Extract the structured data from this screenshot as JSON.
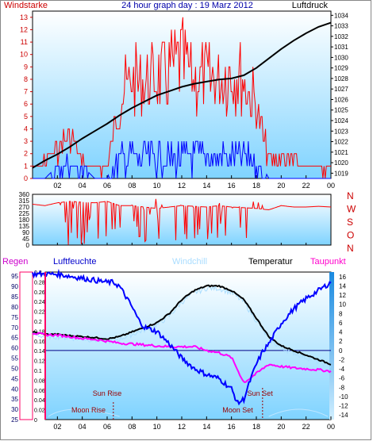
{
  "chart_data": [
    {
      "type": "bar",
      "panel": "wind-pressure",
      "title": "24 hour graph day : 19 Marz 2012",
      "left_label": "Windstarke",
      "right_label": "Luftdruck",
      "x_ticks": [
        "02",
        "04",
        "06",
        "08",
        "10",
        "12",
        "14",
        "16",
        "18",
        "20",
        "22",
        "00"
      ],
      "y_left_ticks": [
        0,
        1,
        2,
        3,
        4,
        5,
        6,
        7,
        8,
        9,
        10,
        11,
        12,
        13
      ],
      "y_left_lim": [
        0,
        13.5
      ],
      "y_right_ticks": [
        1019,
        1020,
        1021,
        1022,
        1023,
        1024,
        1025,
        1026,
        1027,
        1028,
        1029,
        1030,
        1031,
        1032,
        1033,
        1034
      ],
      "y_right_lim": [
        1018.5,
        1034.4
      ],
      "series": [
        {
          "name": "Windstarke gust",
          "color": "#ff0000",
          "x": [
            0,
            1,
            2,
            3,
            4,
            5,
            6,
            7,
            8,
            9,
            10,
            11,
            12,
            13,
            14,
            15,
            16,
            17,
            18,
            19,
            20,
            21,
            22,
            23
          ],
          "values": [
            1,
            2,
            3,
            5,
            2,
            1,
            1,
            9,
            11,
            11,
            11,
            12,
            13,
            11,
            11,
            11,
            12,
            11,
            8,
            2,
            2,
            2,
            1,
            1
          ]
        },
        {
          "name": "Windstarke mean",
          "color": "#0000ff",
          "x": [
            0,
            1,
            2,
            3,
            4,
            5,
            6,
            7,
            8,
            9,
            10,
            11,
            12,
            13,
            14,
            15,
            16,
            17,
            18,
            19,
            20,
            21,
            22,
            23
          ],
          "values": [
            0,
            0,
            1,
            2,
            1,
            0,
            0,
            3,
            3,
            3,
            3,
            3,
            3,
            3,
            3,
            3,
            3,
            3,
            2,
            0,
            0,
            0,
            0,
            0
          ]
        },
        {
          "name": "Luftdruck",
          "color": "#000000",
          "x": [
            0,
            1,
            2,
            3,
            4,
            5,
            6,
            7,
            8,
            9,
            10,
            11,
            12,
            13,
            14,
            15,
            16,
            17,
            18,
            19,
            20,
            21,
            22,
            23,
            24
          ],
          "values": [
            1019.5,
            1020.2,
            1020.8,
            1021.5,
            1022.3,
            1023.0,
            1023.7,
            1024.5,
            1025.2,
            1025.8,
            1026.4,
            1026.8,
            1027.2,
            1027.5,
            1027.7,
            1027.9,
            1028.0,
            1028.3,
            1029.0,
            1029.9,
            1030.8,
            1031.6,
            1032.3,
            1032.9,
            1033.3
          ]
        }
      ]
    },
    {
      "type": "line",
      "panel": "wind-direction",
      "x_ticks": [
        "02",
        "04",
        "06",
        "08",
        "10",
        "12",
        "14",
        "16",
        "18",
        "20",
        "22",
        "00"
      ],
      "y_left_ticks": [
        0,
        45,
        90,
        135,
        180,
        225,
        270,
        315,
        360
      ],
      "y_lim": [
        0,
        360
      ],
      "direction_labels": [
        "N",
        "W",
        "S",
        "O",
        "N"
      ],
      "series": [
        {
          "name": "Wind direction",
          "color": "#ff0000",
          "x": [
            0,
            1,
            2,
            3,
            4,
            5,
            6,
            7,
            8,
            9,
            10,
            11,
            12,
            13,
            14,
            15,
            16,
            17,
            18,
            19,
            20,
            21,
            22,
            23,
            24
          ],
          "values": [
            290,
            280,
            300,
            310,
            305,
            300,
            310,
            280,
            280,
            270,
            260,
            270,
            280,
            275,
            270,
            280,
            270,
            265,
            260,
            250,
            280,
            270,
            270,
            275,
            270
          ]
        }
      ]
    },
    {
      "type": "line",
      "panel": "humidity-temperature",
      "labels": {
        "regen": "Regen",
        "luftfeuchte": "Luftfeuchte",
        "windchill": "Windchill",
        "temperatur": "Temperatur",
        "taupunkt": "Taupunkt"
      },
      "annotations": {
        "sun_rise": "Sun Rise",
        "sun_set": "Sun Set",
        "moon_rise": "Moon Rise",
        "moon_set": "Moon Set"
      },
      "x_ticks": [
        "02",
        "04",
        "06",
        "08",
        "10",
        "12",
        "14",
        "16",
        "18",
        "20",
        "22",
        "00"
      ],
      "y_humidity_ticks": [
        25,
        30,
        35,
        40,
        45,
        50,
        55,
        60,
        65,
        70,
        75,
        80,
        85,
        90,
        95
      ],
      "y_humidity_lim": [
        25,
        97
      ],
      "y_rain_ticks": [
        "0",
        "0.02",
        "0.04",
        "0.06",
        "0.08",
        "0.1",
        "0.12",
        "0.14",
        "0.16",
        "0.18",
        "0.2",
        "0.22",
        "0.24",
        "0.26",
        "0.28",
        "0.3"
      ],
      "y_rain_lim": [
        0,
        0.3
      ],
      "y_temp_ticks": [
        -14,
        -12,
        -10,
        -8,
        -6,
        -4,
        -2,
        0,
        2,
        4,
        6,
        8,
        10,
        12,
        14,
        16
      ],
      "y_temp_lim": [
        -15,
        17
      ],
      "colors": {
        "humidity": "#0000ff",
        "temperature": "#000000",
        "windchill": "#aaddff",
        "dewpoint": "#ff00ff",
        "rain": "#ff0066",
        "accent_bg": "#1a7acc"
      },
      "series": [
        {
          "name": "Luftfeuchte",
          "color": "#0000ff",
          "x": [
            0,
            1,
            2,
            3,
            4,
            5,
            6,
            6.5,
            7,
            7.5,
            8,
            8.5,
            9,
            10,
            11,
            12,
            13,
            14,
            15,
            16,
            16.5,
            17,
            17.5,
            18,
            18.5,
            19,
            20,
            21,
            22,
            23,
            24
          ],
          "values": [
            96,
            96,
            96,
            95,
            94,
            93,
            92,
            92,
            90,
            85,
            80,
            74,
            70,
            68,
            62,
            55,
            50,
            47,
            45,
            40,
            33,
            35,
            44,
            52,
            58,
            62,
            72,
            79,
            84,
            88,
            92
          ]
        },
        {
          "name": "Temperatur",
          "color": "#000000",
          "x": [
            0,
            1,
            2,
            3,
            4,
            5,
            6,
            7,
            8,
            9,
            10,
            11,
            12,
            13,
            14,
            15,
            16,
            17,
            18,
            19,
            20,
            21,
            22,
            23,
            24
          ],
          "values": [
            4,
            3.5,
            3.5,
            3.2,
            3,
            2.8,
            2.5,
            3,
            4,
            5,
            6,
            8,
            11,
            13,
            14,
            14,
            13,
            11,
            7,
            3,
            1,
            0,
            -1,
            -2,
            -3
          ]
        },
        {
          "name": "Taupunkt",
          "color": "#ff00ff",
          "x": [
            0,
            1,
            2,
            3,
            4,
            5,
            6,
            7,
            8,
            9,
            10,
            11,
            12,
            13,
            14,
            15,
            16,
            17,
            18,
            19,
            20,
            21,
            22,
            23,
            24
          ],
          "values": [
            3.8,
            3.4,
            3.3,
            3,
            2.6,
            2.4,
            2,
            1.6,
            1.4,
            1.2,
            1.0,
            0.8,
            0.8,
            0.8,
            0,
            -0.5,
            -1.5,
            -7,
            -5,
            -3,
            -3.5,
            -3.8,
            -4,
            -4.2,
            -4.5
          ]
        }
      ]
    }
  ]
}
